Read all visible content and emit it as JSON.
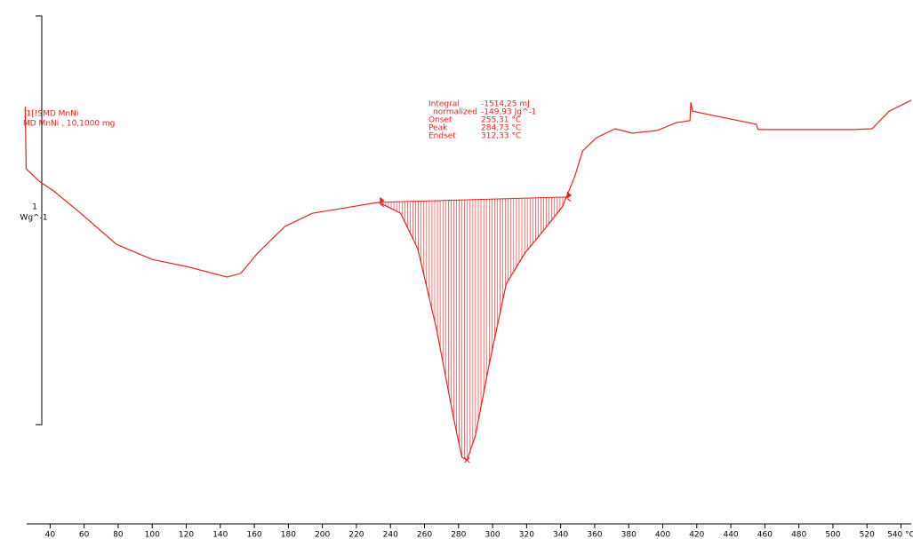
{
  "chart_data": {
    "type": "line",
    "sample_labels": [
      "]1[!SMD MnNi",
      "MD MnNi , 10,1000 mg"
    ],
    "y_unit_value": 1,
    "y_unit": "Wg^-1",
    "color": "#e8231f",
    "x": [
      25.4,
      25.9,
      34,
      42,
      58,
      79,
      100,
      120,
      144,
      152,
      162,
      178,
      194,
      210,
      233,
      246,
      256,
      267,
      277,
      282,
      285,
      290,
      298,
      308,
      319,
      329,
      341,
      348,
      353,
      361,
      372,
      382,
      397,
      408,
      416,
      416.5,
      417.5,
      429,
      455,
      456,
      481,
      512,
      523,
      533,
      546
    ],
    "y": [
      0.391,
      0.239,
      0.207,
      0.185,
      0.13,
      0.054,
      0.017,
      0,
      -0.026,
      -0.017,
      0.033,
      0.098,
      0.13,
      0.141,
      0.157,
      0.13,
      0.043,
      -0.152,
      -0.37,
      -0.467,
      -0.474,
      -0.413,
      -0.239,
      -0.043,
      0.033,
      0.083,
      0.146,
      0.217,
      0.283,
      0.315,
      0.337,
      0.326,
      0.333,
      0.352,
      0.357,
      0.402,
      0.38,
      0.37,
      0.348,
      0.335,
      0.335,
      0.335,
      0.337,
      0.38,
      0.407
    ],
    "integration": {
      "start": [
        234,
        0.157
      ],
      "end": [
        344,
        0.17
      ],
      "peak": [
        285,
        -0.474
      ]
    },
    "results": [
      [
        "Integral",
        "-1514,25 mJ"
      ],
      [
        "normalized",
        "-149,93 Jg^-1"
      ],
      [
        "Onset",
        "255,31 °C"
      ],
      [
        "Peak",
        "284,73 °C"
      ],
      [
        "Endset",
        "312,33 °C"
      ]
    ],
    "xlim": [
      21,
      546
    ],
    "ylim": [
      -0.63,
      0.652
    ],
    "xticks": [
      40,
      60,
      80,
      100,
      120,
      140,
      160,
      180,
      200,
      220,
      240,
      260,
      280,
      300,
      320,
      340,
      360,
      380,
      400,
      420,
      440,
      460,
      480,
      500,
      520,
      {
        "value": 540,
        "label": "540 °C"
      }
    ]
  }
}
